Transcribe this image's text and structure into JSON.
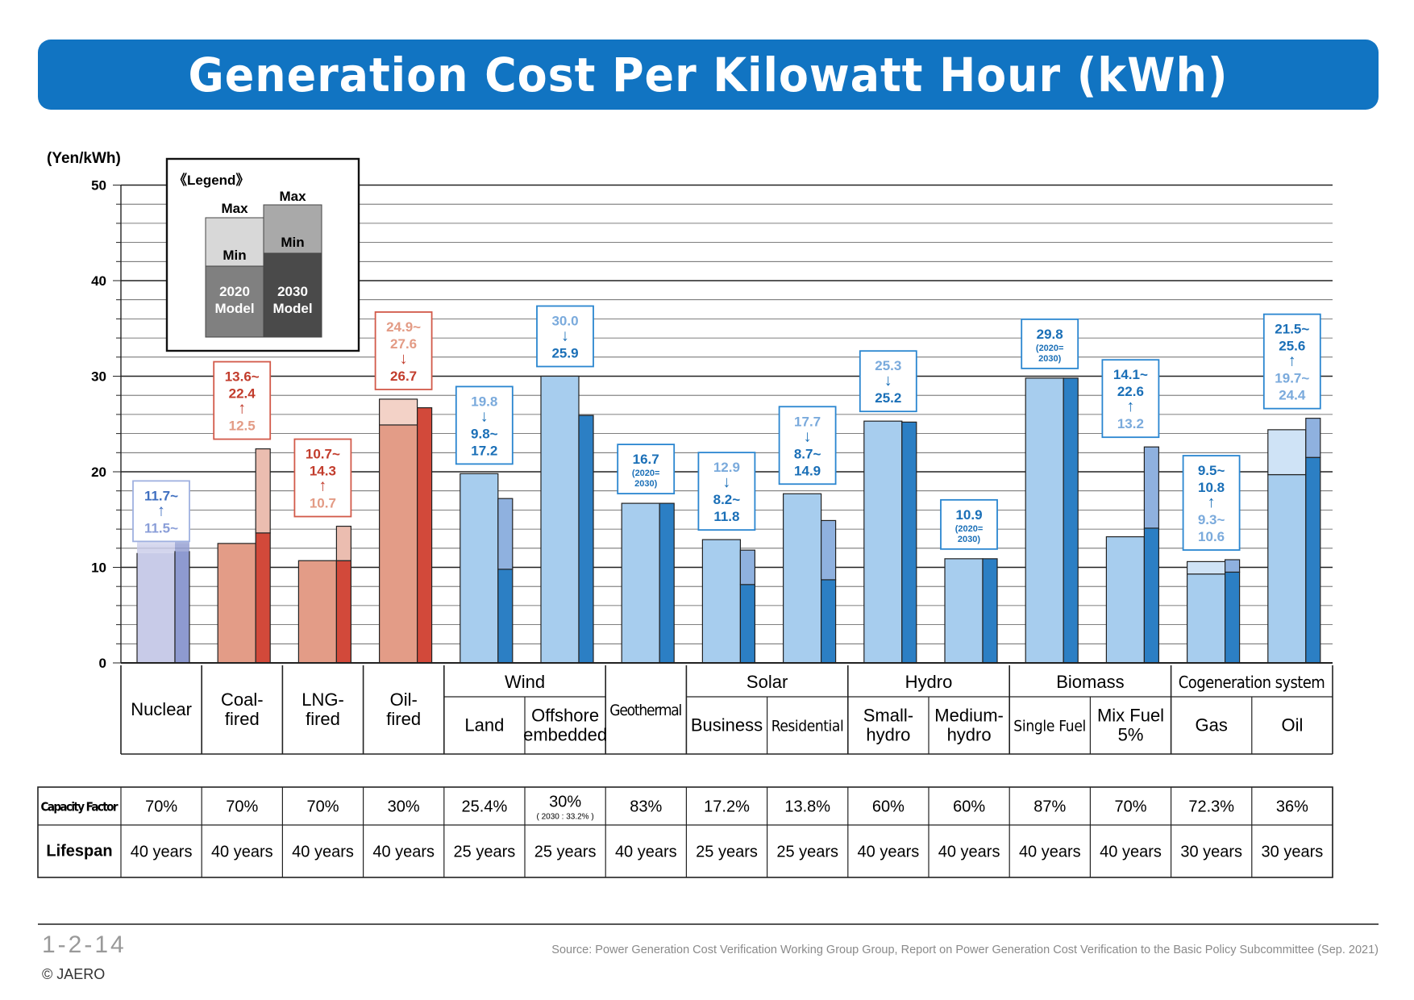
{
  "header": {
    "title": "Generation Cost Per Kilowatt Hour (kWh)"
  },
  "footer": {
    "figure_number": "1-2-14",
    "copyright": "© JAERO",
    "source": "Source: Power Generation Cost Verification Working Group Group, Report on Power Generation Cost Verification to the Basic Policy Subcommittee (Sep. 2021)"
  },
  "colors": {
    "title_bar": "#1174c2",
    "nuclear_2020": "#c8cbe8",
    "nuclear_2030": "#8e9ad0",
    "fossil_2020": "#e39c87",
    "fossil_2020_light": "#f3d2c7",
    "fossil_2030": "#d2493a",
    "fossil_2030_light": "#ebbdb0",
    "renew_2020": "#a7cdee",
    "renew_2020_light": "#cfe3f6",
    "renew_2030": "#2c7fc4",
    "renew_2030_light": "#8fb1df",
    "legend_2020_min": "#808080",
    "legend_2020_max": "#d8d8d8",
    "legend_2030_min": "#4a4a4a",
    "legend_2030_max": "#a9a9a9"
  },
  "chart_data": {
    "type": "bar",
    "ylabel": "(Yen/kWh)",
    "ylim": [
      0,
      50
    ],
    "yticks": [
      0,
      10,
      20,
      30,
      40,
      50
    ],
    "grid": true,
    "legend": {
      "title": "《Legend》",
      "max_label": "Max",
      "min_label": "Min",
      "model_2020": [
        "2020",
        "Model"
      ],
      "model_2030": [
        "2030",
        "Model"
      ]
    },
    "groups": [
      {
        "label": "",
        "span": 1
      },
      {
        "label": "",
        "span": 1
      },
      {
        "label": "",
        "span": 1
      },
      {
        "label": "",
        "span": 1
      },
      {
        "label": "Wind",
        "span": 2
      },
      {
        "label": "",
        "span": 1
      },
      {
        "label": "Solar",
        "span": 2
      },
      {
        "label": "Hydro",
        "span": 2
      },
      {
        "label": "Biomass",
        "span": 2
      },
      {
        "label": "Cogeneration system",
        "span": 2
      }
    ],
    "categories": [
      {
        "label": [
          "Nuclear"
        ],
        "family": "nuclear",
        "y2020": [
          11.5,
          11.5
        ],
        "y2030": [
          11.7,
          11.7
        ],
        "open_top": true,
        "ann": [
          [
            "11.7~",
            "r"
          ],
          [
            "↑",
            "r"
          ],
          [
            "11.5~",
            "l"
          ]
        ]
      },
      {
        "label": [
          "Coal-",
          "fired"
        ],
        "family": "fossil",
        "y2020": [
          12.5,
          12.5
        ],
        "y2030": [
          13.6,
          22.4
        ],
        "ann": [
          [
            "13.6~",
            "r"
          ],
          [
            "22.4",
            "r"
          ],
          [
            "↑",
            "r"
          ],
          [
            "12.5",
            "l"
          ]
        ]
      },
      {
        "label": [
          "LNG-",
          "fired"
        ],
        "family": "fossil",
        "y2020": [
          10.7,
          10.7
        ],
        "y2030": [
          10.7,
          14.3
        ],
        "ann": [
          [
            "10.7~",
            "r"
          ],
          [
            "14.3",
            "r"
          ],
          [
            "↑",
            "r"
          ],
          [
            "10.7",
            "l"
          ]
        ]
      },
      {
        "label": [
          "Oil-",
          "fired"
        ],
        "family": "fossil",
        "y2020": [
          24.9,
          27.6
        ],
        "y2030": [
          26.7,
          26.7
        ],
        "ann": [
          [
            "24.9~",
            "l"
          ],
          [
            "27.6",
            "l"
          ],
          [
            "↓",
            "r"
          ],
          [
            "26.7",
            "r"
          ]
        ]
      },
      {
        "label": [
          "Land"
        ],
        "family": "renew",
        "y2020": [
          19.8,
          19.8
        ],
        "y2030": [
          9.8,
          17.2
        ],
        "ann": [
          [
            "19.8",
            "l"
          ],
          [
            "↓",
            "r"
          ],
          [
            "9.8~",
            "r"
          ],
          [
            "17.2",
            "r"
          ]
        ]
      },
      {
        "label": [
          "Offshore",
          "embedded"
        ],
        "family": "renew",
        "y2020": [
          30.0,
          30.0
        ],
        "y2030": [
          25.9,
          25.9
        ],
        "ann": [
          [
            "30.0",
            "l"
          ],
          [
            "↓",
            "r"
          ],
          [
            "25.9",
            "r"
          ]
        ]
      },
      {
        "label": [
          "Geothermal"
        ],
        "family": "renew",
        "y2020": [
          16.7,
          16.7
        ],
        "y2030": [
          16.7,
          16.7
        ],
        "ann": [
          [
            "16.7",
            "r"
          ],
          [
            "(2020=",
            "s"
          ],
          [
            "2030)",
            "s"
          ]
        ]
      },
      {
        "label": [
          "Business"
        ],
        "family": "renew",
        "y2020": [
          12.9,
          12.9
        ],
        "y2030": [
          8.2,
          11.8
        ],
        "ann": [
          [
            "12.9",
            "l"
          ],
          [
            "↓",
            "r"
          ],
          [
            "8.2~",
            "r"
          ],
          [
            "11.8",
            "r"
          ]
        ]
      },
      {
        "label": [
          "Residential"
        ],
        "family": "renew",
        "y2020": [
          17.7,
          17.7
        ],
        "y2030": [
          8.7,
          14.9
        ],
        "ann": [
          [
            "17.7",
            "l"
          ],
          [
            "↓",
            "r"
          ],
          [
            "8.7~",
            "r"
          ],
          [
            "14.9",
            "r"
          ]
        ]
      },
      {
        "label": [
          "Small-",
          "hydro"
        ],
        "family": "renew",
        "y2020": [
          25.3,
          25.3
        ],
        "y2030": [
          25.2,
          25.2
        ],
        "ann": [
          [
            "25.3",
            "l"
          ],
          [
            "↓",
            "r"
          ],
          [
            "25.2",
            "r"
          ]
        ]
      },
      {
        "label": [
          "Medium-",
          "hydro"
        ],
        "family": "renew",
        "y2020": [
          10.9,
          10.9
        ],
        "y2030": [
          10.9,
          10.9
        ],
        "ann": [
          [
            "10.9",
            "r"
          ],
          [
            "(2020=",
            "s"
          ],
          [
            "2030)",
            "s"
          ]
        ]
      },
      {
        "label": [
          "Single Fuel"
        ],
        "family": "renew",
        "y2020": [
          29.8,
          29.8
        ],
        "y2030": [
          29.8,
          29.8
        ],
        "ann": [
          [
            "29.8",
            "r"
          ],
          [
            "(2020=",
            "s"
          ],
          [
            "2030)",
            "s"
          ]
        ]
      },
      {
        "label": [
          "Mix Fuel",
          "5%"
        ],
        "family": "renew",
        "y2020": [
          13.2,
          13.2
        ],
        "y2030": [
          14.1,
          22.6
        ],
        "ann": [
          [
            "14.1~",
            "r"
          ],
          [
            "22.6",
            "r"
          ],
          [
            "↑",
            "r"
          ],
          [
            "13.2",
            "l"
          ]
        ]
      },
      {
        "label": [
          "Gas"
        ],
        "family": "renew",
        "y2020": [
          9.3,
          10.6
        ],
        "y2030": [
          9.5,
          10.8
        ],
        "ann": [
          [
            "9.5~",
            "r"
          ],
          [
            "10.8",
            "r"
          ],
          [
            "↑",
            "r"
          ],
          [
            "9.3~",
            "l"
          ],
          [
            "10.6",
            "l"
          ]
        ]
      },
      {
        "label": [
          "Oil"
        ],
        "family": "renew",
        "y2020": [
          19.7,
          24.4
        ],
        "y2030": [
          21.5,
          25.6
        ],
        "ann": [
          [
            "21.5~",
            "r"
          ],
          [
            "25.6",
            "r"
          ],
          [
            "↑",
            "r"
          ],
          [
            "19.7~",
            "l"
          ],
          [
            "24.4",
            "l"
          ]
        ]
      }
    ],
    "table": {
      "rows": [
        {
          "label": "Capacity Factor",
          "values": [
            "70%",
            "70%",
            "70%",
            "30%",
            "25.4%",
            "30%",
            "83%",
            "17.2%",
            "13.8%",
            "60%",
            "60%",
            "87%",
            "70%",
            "72.3%",
            "36%"
          ],
          "subnotes": [
            "",
            "",
            "",
            "",
            "",
            "( 2030 : 33.2% )",
            "",
            "",
            "",
            "",
            "",
            "",
            "",
            "",
            ""
          ]
        },
        {
          "label": "Lifespan",
          "values": [
            "40 years",
            "40 years",
            "40 years",
            "40 years",
            "25 years",
            "25 years",
            "40 years",
            "25 years",
            "25 years",
            "40 years",
            "40 years",
            "40 years",
            "40 years",
            "30 years",
            "30 years"
          ],
          "subnotes": []
        }
      ]
    }
  }
}
